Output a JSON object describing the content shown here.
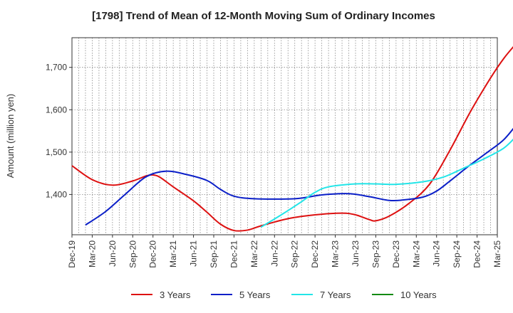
{
  "chart_data": {
    "type": "line",
    "title": "[1798]  Trend of Mean of 12-Month Moving Sum of Ordinary Incomes",
    "xlabel": "",
    "ylabel": "Amount (million yen)",
    "ylim": [
      1305,
      1770
    ],
    "yticks": [
      1400,
      1500,
      1600,
      1700
    ],
    "ytick_labels": [
      "1,400",
      "1,500",
      "1,600",
      "1,700"
    ],
    "x_tick_labels": [
      "Dec-19",
      "Mar-20",
      "Jun-20",
      "Sep-20",
      "Dec-20",
      "Mar-21",
      "Jun-21",
      "Sep-21",
      "Dec-21",
      "Mar-22",
      "Jun-22",
      "Sep-22",
      "Dec-22",
      "Mar-23",
      "Jun-23",
      "Sep-23",
      "Dec-23",
      "Mar-24",
      "Jun-24",
      "Sep-24",
      "Dec-24",
      "Mar-25"
    ],
    "months": 64,
    "grid": true,
    "legend_position": "bottom",
    "series": [
      {
        "name": "3 Years",
        "color": "#dd1111",
        "start_index": 0,
        "points": [
          [
            0,
            1468
          ],
          [
            3,
            1435
          ],
          [
            6,
            1422
          ],
          [
            9,
            1432
          ],
          [
            11,
            1444
          ],
          [
            12,
            1446
          ],
          [
            13,
            1441
          ],
          [
            15,
            1418
          ],
          [
            18,
            1385
          ],
          [
            20,
            1358
          ],
          [
            22,
            1330
          ],
          [
            24,
            1315
          ],
          [
            26,
            1316
          ],
          [
            28,
            1326
          ],
          [
            32,
            1343
          ],
          [
            36,
            1352
          ],
          [
            40,
            1356
          ],
          [
            42,
            1352
          ],
          [
            44,
            1341
          ],
          [
            45,
            1338
          ],
          [
            47,
            1349
          ],
          [
            50,
            1380
          ],
          [
            53,
            1425
          ],
          [
            56,
            1505
          ],
          [
            59,
            1595
          ],
          [
            62,
            1675
          ],
          [
            64,
            1722
          ],
          [
            66,
            1760
          ]
        ]
      },
      {
        "name": "5 Years",
        "color": "#0b1fc8",
        "start_index": 2,
        "points": [
          [
            2,
            1328
          ],
          [
            5,
            1360
          ],
          [
            8,
            1402
          ],
          [
            11,
            1442
          ],
          [
            14,
            1455
          ],
          [
            17,
            1447
          ],
          [
            20,
            1433
          ],
          [
            22,
            1412
          ],
          [
            24,
            1396
          ],
          [
            27,
            1390
          ],
          [
            33,
            1390
          ],
          [
            37,
            1399
          ],
          [
            41,
            1402
          ],
          [
            44,
            1395
          ],
          [
            47,
            1386
          ],
          [
            49,
            1387
          ],
          [
            52,
            1394
          ],
          [
            54,
            1408
          ],
          [
            56,
            1432
          ],
          [
            59,
            1470
          ],
          [
            62,
            1505
          ],
          [
            64,
            1530
          ],
          [
            66,
            1568
          ]
        ]
      },
      {
        "name": "7 Years",
        "color": "#22e5e8",
        "start_index": 28,
        "points": [
          [
            28,
            1323
          ],
          [
            31,
            1352
          ],
          [
            34,
            1383
          ],
          [
            36,
            1405
          ],
          [
            38,
            1418
          ],
          [
            42,
            1425
          ],
          [
            45,
            1425
          ],
          [
            48,
            1424
          ],
          [
            52,
            1430
          ],
          [
            55,
            1441
          ],
          [
            58,
            1462
          ],
          [
            61,
            1484
          ],
          [
            64,
            1510
          ],
          [
            66,
            1541
          ]
        ]
      },
      {
        "name": "10 Years",
        "color": "#138a13",
        "start_index": 0,
        "points": []
      }
    ]
  }
}
